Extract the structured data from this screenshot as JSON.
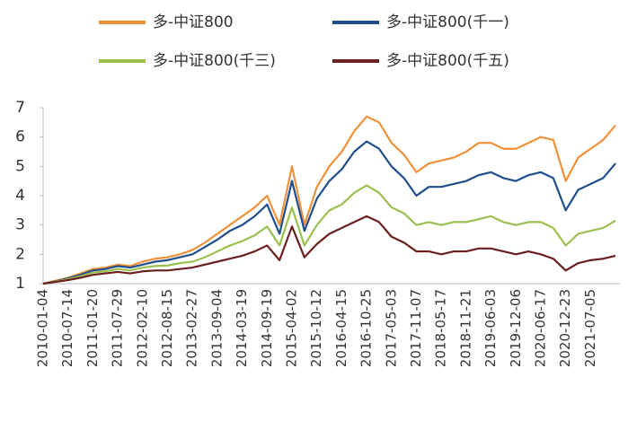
{
  "chart_data": {
    "type": "line",
    "categories": [
      "2010-01-04",
      null,
      "2010-07-14",
      null,
      "2011-01-20",
      null,
      "2011-07-29",
      null,
      "2012-02-10",
      null,
      "2012-08-15",
      null,
      "2013-02-27",
      null,
      "2013-09-04",
      null,
      "2014-03-19",
      null,
      "2014-09-19",
      null,
      "2015-04-02",
      null,
      "2015-10-12",
      null,
      "2016-04-15",
      null,
      "2016-10-25",
      null,
      "2017-05-03",
      null,
      "2017-11-07",
      null,
      "2018-05-17",
      null,
      "2018-11-21",
      null,
      "2019-06-03",
      null,
      "2019-12-06",
      null,
      "2020-06-17",
      null,
      "2020-12-23",
      null,
      "2021-07-05",
      null,
      null
    ],
    "series": [
      {
        "name": "多-中证800",
        "color": "#f0913a",
        "values": [
          1.0,
          1.1,
          1.2,
          1.35,
          1.5,
          1.55,
          1.65,
          1.6,
          1.75,
          1.85,
          1.9,
          2.0,
          2.15,
          2.4,
          2.7,
          3.0,
          3.3,
          3.6,
          4.0,
          3.0,
          5.0,
          3.0,
          4.3,
          5.0,
          5.5,
          6.2,
          6.7,
          6.5,
          5.8,
          5.4,
          4.8,
          5.1,
          5.2,
          5.3,
          5.5,
          5.8,
          5.8,
          5.6,
          5.6,
          5.8,
          6.0,
          5.9,
          4.5,
          5.3,
          5.6,
          5.9,
          6.4
        ]
      },
      {
        "name": "多-中证800(千一)",
        "color": "#1f4e8c",
        "values": [
          1.0,
          1.08,
          1.18,
          1.3,
          1.45,
          1.5,
          1.6,
          1.55,
          1.65,
          1.75,
          1.8,
          1.9,
          2.0,
          2.25,
          2.5,
          2.8,
          3.0,
          3.3,
          3.7,
          2.7,
          4.5,
          2.8,
          3.9,
          4.5,
          4.9,
          5.5,
          5.85,
          5.6,
          5.0,
          4.6,
          4.0,
          4.3,
          4.3,
          4.4,
          4.5,
          4.7,
          4.8,
          4.6,
          4.5,
          4.7,
          4.8,
          4.6,
          3.5,
          4.2,
          4.4,
          4.6,
          5.1
        ]
      },
      {
        "name": "多-中证800(千三)",
        "color": "#9bc050",
        "values": [
          1.0,
          1.07,
          1.15,
          1.25,
          1.38,
          1.42,
          1.5,
          1.45,
          1.55,
          1.6,
          1.62,
          1.7,
          1.75,
          1.9,
          2.1,
          2.3,
          2.45,
          2.65,
          2.95,
          2.3,
          3.6,
          2.3,
          3.0,
          3.5,
          3.7,
          4.1,
          4.35,
          4.1,
          3.6,
          3.4,
          3.0,
          3.1,
          3.0,
          3.1,
          3.1,
          3.2,
          3.3,
          3.1,
          3.0,
          3.1,
          3.1,
          2.9,
          2.3,
          2.7,
          2.8,
          2.9,
          3.15
        ]
      },
      {
        "name": "多-中证800(千五)",
        "color": "#6b1f1f",
        "values": [
          1.0,
          1.06,
          1.12,
          1.2,
          1.3,
          1.35,
          1.4,
          1.35,
          1.42,
          1.45,
          1.45,
          1.5,
          1.55,
          1.65,
          1.75,
          1.85,
          1.95,
          2.1,
          2.3,
          1.8,
          2.95,
          1.9,
          2.35,
          2.7,
          2.9,
          3.1,
          3.3,
          3.1,
          2.6,
          2.4,
          2.1,
          2.1,
          2.0,
          2.1,
          2.1,
          2.2,
          2.2,
          2.1,
          2.0,
          2.1,
          2.0,
          1.85,
          1.45,
          1.7,
          1.8,
          1.85,
          1.95
        ]
      }
    ],
    "ylim": [
      1,
      7
    ],
    "yticks": [
      1,
      2,
      3,
      4,
      5,
      6,
      7
    ],
    "grid": false
  }
}
